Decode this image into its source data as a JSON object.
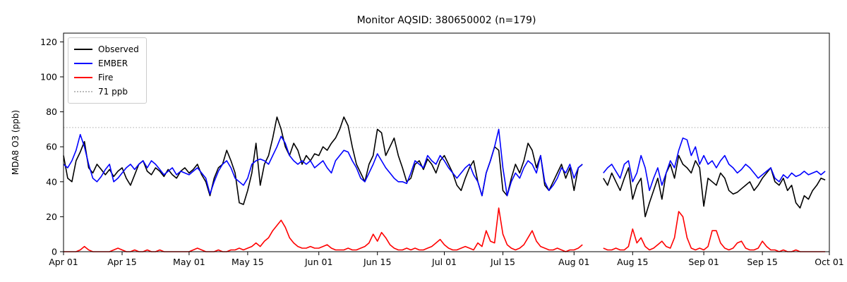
{
  "title": "Monitor AQSID: 380650002 (n=179)",
  "chart_data": {
    "type": "line",
    "title": "Monitor AQSID: 380650002 (n=179)",
    "xlabel": "",
    "ylabel": "MDA8 O3 (ppb)",
    "ylim": [
      0,
      125
    ],
    "y_ticks": [
      0,
      20,
      40,
      60,
      80,
      100,
      120
    ],
    "x_range": [
      "Apr 01",
      "Oct 01"
    ],
    "x_unit": "day",
    "n_days": 183,
    "x_tick_labels": [
      "Apr 01",
      "Apr 15",
      "May 01",
      "May 15",
      "Jun 01",
      "Jun 15",
      "Jul 01",
      "Jul 15",
      "Aug 01",
      "Aug 15",
      "Sep 01",
      "Sep 15",
      "Oct 01"
    ],
    "x_tick_days": [
      0,
      14,
      30,
      44,
      61,
      75,
      91,
      105,
      122,
      136,
      153,
      167,
      183
    ],
    "grid": false,
    "legend_position": "upper left",
    "threshold": {
      "label": "71 ppb",
      "value": 71,
      "color": "#bbbbbb",
      "style": "dotted"
    },
    "series": [
      {
        "name": "Observed",
        "color": "#000000",
        "values": [
          55,
          42,
          40,
          52,
          57,
          63,
          48,
          45,
          50,
          47,
          44,
          47,
          43,
          46,
          48,
          42,
          38,
          44,
          50,
          52,
          46,
          44,
          48,
          46,
          43,
          47,
          44,
          42,
          46,
          48,
          45,
          47,
          50,
          44,
          40,
          32,
          42,
          48,
          50,
          58,
          52,
          45,
          28,
          27,
          35,
          45,
          62,
          38,
          50,
          55,
          65,
          77,
          70,
          60,
          55,
          62,
          58,
          50,
          55,
          52,
          56,
          55,
          60,
          58,
          62,
          65,
          70,
          77,
          72,
          60,
          50,
          45,
          40,
          50,
          55,
          70,
          68,
          55,
          60,
          65,
          55,
          48,
          40,
          42,
          50,
          52,
          47,
          53,
          50,
          45,
          52,
          55,
          50,
          45,
          38,
          35,
          42,
          48,
          52,
          40,
          32,
          45,
          52,
          60,
          58,
          35,
          32,
          42,
          50,
          45,
          52,
          62,
          58,
          48,
          55,
          38,
          35,
          40,
          45,
          50,
          42,
          48,
          35,
          48,
          50,
          null,
          null,
          null,
          null,
          42,
          38,
          45,
          40,
          35,
          42,
          48,
          30,
          38,
          42,
          20,
          28,
          35,
          42,
          30,
          45,
          50,
          42,
          55,
          50,
          48,
          45,
          52,
          48,
          26,
          42,
          40,
          38,
          45,
          42,
          35,
          33,
          34,
          36,
          38,
          40,
          35,
          38,
          42,
          45,
          48,
          40,
          38,
          42,
          35,
          38,
          28,
          25,
          32,
          30,
          35,
          38,
          42,
          41
        ]
      },
      {
        "name": "EMBER",
        "color": "#0000ff",
        "values": [
          50,
          48,
          52,
          58,
          67,
          60,
          50,
          42,
          40,
          43,
          47,
          50,
          40,
          42,
          45,
          48,
          50,
          47,
          50,
          52,
          48,
          52,
          50,
          47,
          44,
          46,
          48,
          44,
          46,
          45,
          44,
          46,
          48,
          45,
          42,
          33,
          40,
          46,
          50,
          52,
          48,
          42,
          40,
          38,
          42,
          50,
          52,
          53,
          52,
          50,
          55,
          60,
          66,
          62,
          55,
          52,
          50,
          52,
          50,
          52,
          48,
          50,
          52,
          48,
          45,
          52,
          55,
          58,
          57,
          52,
          48,
          42,
          40,
          45,
          50,
          56,
          52,
          48,
          45,
          42,
          40,
          40,
          39,
          45,
          52,
          50,
          48,
          55,
          52,
          50,
          55,
          52,
          48,
          45,
          42,
          45,
          48,
          50,
          44,
          40,
          32,
          45,
          52,
          60,
          70,
          48,
          32,
          40,
          45,
          42,
          48,
          52,
          50,
          45,
          55,
          40,
          35,
          38,
          42,
          48,
          45,
          50,
          42,
          48,
          50,
          null,
          null,
          null,
          null,
          45,
          48,
          50,
          46,
          42,
          50,
          52,
          40,
          45,
          55,
          48,
          35,
          42,
          48,
          38,
          45,
          52,
          48,
          58,
          65,
          64,
          55,
          60,
          50,
          55,
          50,
          52,
          48,
          52,
          55,
          50,
          48,
          45,
          47,
          50,
          48,
          45,
          42,
          44,
          46,
          48,
          42,
          40,
          44,
          42,
          45,
          43,
          44,
          46,
          44,
          45,
          46,
          44,
          46
        ]
      },
      {
        "name": "Fire",
        "color": "#ff0000",
        "values": [
          0,
          0,
          0,
          0,
          1,
          3,
          1,
          0,
          0,
          0,
          0,
          0,
          1,
          2,
          1,
          0,
          0,
          1,
          0,
          0,
          1,
          0,
          0,
          1,
          0,
          0,
          0,
          0,
          0,
          0,
          0,
          1,
          2,
          1,
          0,
          0,
          0,
          1,
          0,
          0,
          1,
          1,
          2,
          1,
          2,
          3,
          5,
          3,
          6,
          8,
          12,
          15,
          18,
          14,
          8,
          5,
          3,
          2,
          2,
          3,
          2,
          2,
          3,
          4,
          2,
          1,
          1,
          1,
          2,
          1,
          1,
          2,
          3,
          5,
          10,
          6,
          11,
          8,
          4,
          2,
          1,
          1,
          2,
          1,
          2,
          1,
          1,
          2,
          3,
          5,
          7,
          4,
          2,
          1,
          1,
          2,
          3,
          2,
          1,
          5,
          3,
          12,
          6,
          5,
          25,
          10,
          4,
          2,
          1,
          2,
          4,
          8,
          12,
          6,
          3,
          2,
          1,
          1,
          2,
          1,
          0,
          1,
          1,
          2,
          4,
          null,
          null,
          null,
          null,
          2,
          1,
          1,
          2,
          1,
          1,
          3,
          13,
          5,
          8,
          3,
          1,
          2,
          4,
          6,
          3,
          2,
          8,
          23,
          20,
          8,
          2,
          1,
          2,
          1,
          3,
          12,
          12,
          5,
          2,
          1,
          2,
          5,
          6,
          2,
          1,
          1,
          2,
          6,
          3,
          1,
          1,
          0,
          1,
          0,
          0,
          1,
          0,
          0,
          0,
          0,
          0,
          0,
          0
        ]
      }
    ]
  }
}
